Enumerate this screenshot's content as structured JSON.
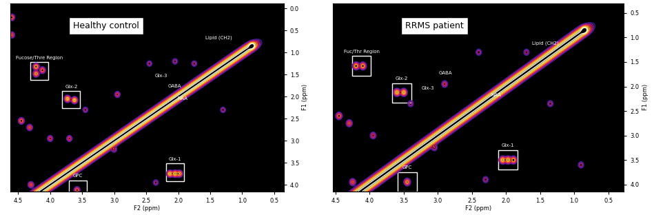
{
  "chart_data": [
    {
      "type": "contour",
      "title": "Healthy control",
      "x_label": "F2 (ppm)",
      "y_label": "F1 (ppm)",
      "xlim": [
        4.62,
        0.35
      ],
      "ylim": [
        4.15,
        -0.12
      ],
      "xticks": [
        4.5,
        4.0,
        3.5,
        3.0,
        2.5,
        2.0,
        1.5,
        1.0,
        0.5
      ],
      "yticks": [
        0.0,
        0.5,
        1.0,
        1.5,
        2.0,
        2.5,
        3.0,
        3.5,
        4.0
      ],
      "diagonal": {
        "start": 4.6,
        "end": 0.8,
        "intensity": 1.5
      },
      "peaks": {
        "x": [
          4.22,
          4.22,
          4.12,
          3.73,
          3.62,
          2.13,
          2.05,
          1.98,
          3.58,
          0.85,
          4.45,
          4.32,
          4.0,
          3.45,
          2.95,
          2.45,
          1.75,
          4.3,
          3.0,
          3.7,
          2.35,
          1.3,
          2.05,
          4.6,
          4.6
        ],
        "y": [
          1.32,
          1.48,
          1.4,
          2.05,
          2.08,
          3.75,
          3.75,
          3.75,
          4.12,
          0.85,
          2.55,
          2.7,
          2.95,
          2.3,
          1.95,
          1.25,
          1.25,
          4.0,
          3.2,
          2.95,
          3.95,
          2.3,
          1.2,
          0.2,
          0.6
        ],
        "intensity": [
          0.8,
          0.7,
          0.6,
          0.9,
          0.9,
          0.9,
          0.9,
          0.8,
          0.6,
          1.2,
          0.6,
          0.5,
          0.4,
          0.3,
          0.4,
          0.3,
          0.3,
          0.5,
          0.3,
          0.4,
          0.3,
          0.3,
          0.3,
          0.6,
          0.5
        ]
      },
      "regions": [
        {
          "text": "Fucose/Thre Region",
          "x": 4.17,
          "y": 1.42
        },
        {
          "text": "Glx-2",
          "x": 3.67,
          "y": 2.07
        },
        {
          "text": "Glx-1",
          "x": 2.05,
          "y": 3.72
        },
        {
          "text": "GPC",
          "x": 3.57,
          "y": 4.1
        }
      ],
      "annotations": [
        {
          "text": "Glx-3",
          "x": 2.27,
          "y": 1.52
        },
        {
          "text": "GABA",
          "x": 2.06,
          "y": 1.76
        },
        {
          "text": "NAA",
          "x": 1.93,
          "y": 2.04
        },
        {
          "text": "Lipid (CH2)",
          "x": 1.37,
          "y": 0.66
        }
      ]
    },
    {
      "type": "contour",
      "title": "RRMS patient",
      "x_label": "F2 (ppm)",
      "y_label": "F1 (ppm)",
      "xlim": [
        4.54,
        0.27
      ],
      "ylim": [
        4.14,
        0.3
      ],
      "xticks": [
        4.5,
        4.0,
        3.5,
        3.0,
        2.5,
        2.0,
        1.5,
        1.0,
        0.5
      ],
      "yticks": [
        0.5,
        1.0,
        1.5,
        2.0,
        2.5,
        3.0,
        3.5,
        4.0
      ],
      "diagonal": {
        "start": 4.6,
        "end": 0.8,
        "intensity": 1.5
      },
      "peaks": {
        "x": [
          4.2,
          4.1,
          3.6,
          3.5,
          2.05,
          1.97,
          1.89,
          3.45,
          0.85,
          4.45,
          4.3,
          3.95,
          3.4,
          2.9,
          2.4,
          1.7,
          4.25,
          3.05,
          2.3,
          1.35,
          0.9
        ],
        "y": [
          1.58,
          1.58,
          2.12,
          2.12,
          3.5,
          3.5,
          3.5,
          3.95,
          0.85,
          2.6,
          2.75,
          3.0,
          2.35,
          1.95,
          1.3,
          1.3,
          3.95,
          3.25,
          3.9,
          2.35,
          3.6
        ],
        "intensity": [
          0.8,
          0.8,
          0.9,
          0.9,
          0.9,
          0.9,
          0.8,
          0.7,
          1.2,
          0.6,
          0.5,
          0.4,
          0.3,
          0.4,
          0.3,
          0.3,
          0.5,
          0.3,
          0.3,
          0.3,
          0.3
        ]
      },
      "regions": [
        {
          "text": "Fuc/Thr Region",
          "x": 4.12,
          "y": 1.58
        },
        {
          "text": "Glx-2",
          "x": 3.53,
          "y": 2.13
        },
        {
          "text": "Glx-1",
          "x": 1.97,
          "y": 3.5
        },
        {
          "text": "GPC",
          "x": 3.45,
          "y": 3.95
        }
      ],
      "annotations": [
        {
          "text": "Glx-3",
          "x": 3.15,
          "y": 2.04
        },
        {
          "text": "GABA",
          "x": 2.89,
          "y": 1.72
        },
        {
          "text": "NAA",
          "x": 2.15,
          "y": 2.18
        },
        {
          "text": "Lipid (CH2)",
          "x": 1.42,
          "y": 1.12
        }
      ]
    }
  ]
}
